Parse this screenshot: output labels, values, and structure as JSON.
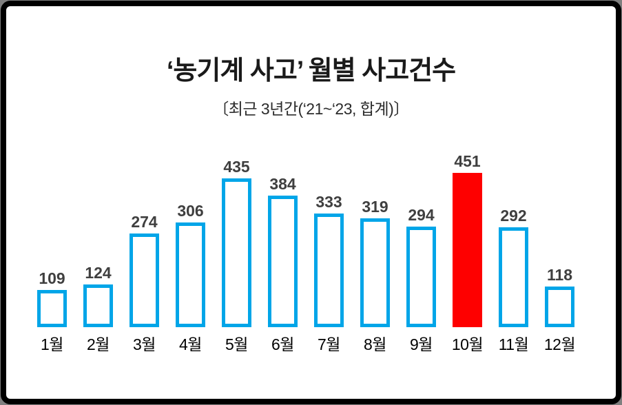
{
  "chart_data": {
    "type": "bar",
    "title": "‘농기계 사고’ 월별 사고건수",
    "subtitle": "〔최근 3년간(‘21~‘23, 합계)〕",
    "categories": [
      "1월",
      "2월",
      "3월",
      "4월",
      "5월",
      "6월",
      "7월",
      "8월",
      "9월",
      "10월",
      "11월",
      "12월"
    ],
    "values": [
      109,
      124,
      274,
      306,
      435,
      384,
      333,
      319,
      294,
      451,
      292,
      118
    ],
    "xlabel": "",
    "ylabel": "",
    "ylim": [
      0,
      451
    ],
    "grid": false,
    "legend": "none",
    "data_labels": true,
    "highlight_index": 9,
    "colors": {
      "bar_fill": "#ffffff",
      "bar_border": "#00a5e8",
      "highlight": "#fe0000",
      "value_label": "#3f3f3f",
      "month_label": "#000000",
      "frame_border": "#000000",
      "frame_edge": "#7f7f7f"
    }
  }
}
